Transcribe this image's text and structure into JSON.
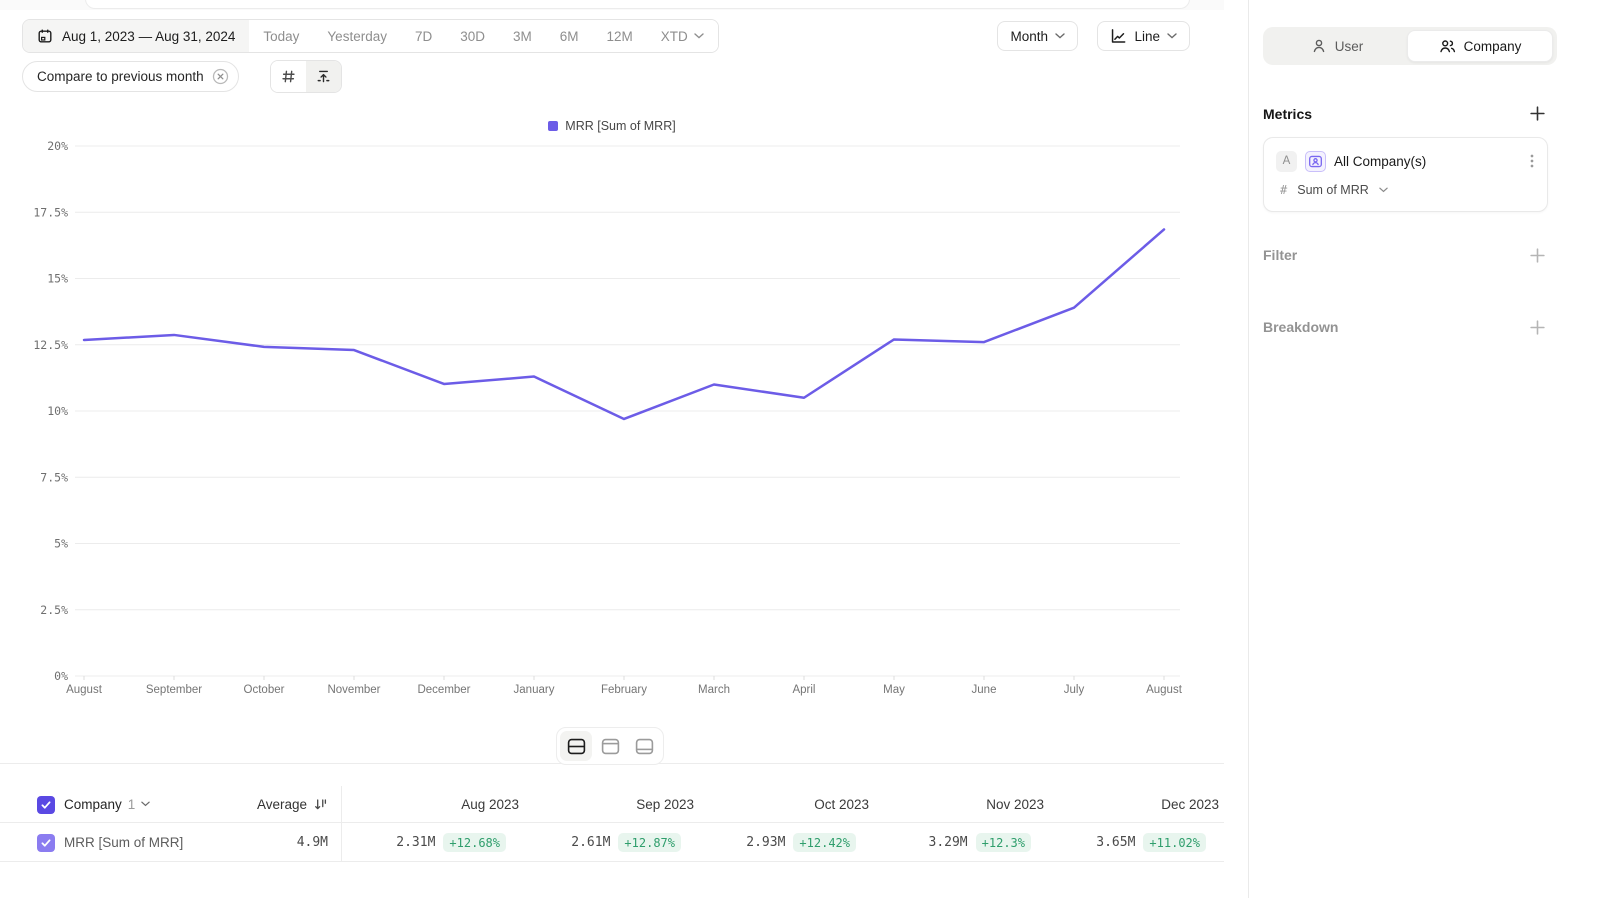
{
  "toolbar": {
    "date_range": "Aug 1, 2023 — Aug 31, 2024",
    "quick_ranges": [
      "Today",
      "Yesterday",
      "7D",
      "30D",
      "3M",
      "6M",
      "12M"
    ],
    "xtd_label": "XTD",
    "granularity": "Month",
    "chart_type": "Line",
    "compare_chip": "Compare to previous month"
  },
  "legend": {
    "label": "MRR [Sum of MRR]"
  },
  "chart_data": {
    "type": "line",
    "x": [
      "August",
      "September",
      "October",
      "November",
      "December",
      "January",
      "February",
      "March",
      "April",
      "May",
      "June",
      "July",
      "August"
    ],
    "series": [
      {
        "name": "MRR [Sum of MRR]",
        "values": [
          12.68,
          12.87,
          12.42,
          12.3,
          11.02,
          11.3,
          9.7,
          11.0,
          10.5,
          12.7,
          12.6,
          13.9,
          16.85
        ]
      }
    ],
    "ylabel": "",
    "ylim": [
      0,
      20
    ],
    "yticks": [
      "0%",
      "2.5%",
      "5%",
      "7.5%",
      "10%",
      "12.5%",
      "15%",
      "17.5%",
      "20%"
    ],
    "grid": true,
    "legend_position": "top",
    "line_color": "#6c5ce7"
  },
  "sidebar": {
    "toggle": {
      "user": "User",
      "company": "Company"
    },
    "metrics_title": "Metrics",
    "metric": {
      "badge": "A",
      "name": "All Company(s)",
      "hash": "#",
      "aggregation": "Sum of MRR"
    },
    "filter_title": "Filter",
    "breakdown_title": "Breakdown"
  },
  "table": {
    "entity": "Company",
    "entity_count": "1",
    "average_label": "Average",
    "columns": [
      "Aug 2023",
      "Sep 2023",
      "Oct 2023",
      "Nov 2023",
      "Dec 2023"
    ],
    "rows": [
      {
        "label": "MRR [Sum of MRR]",
        "average": "4.9M",
        "cells": [
          {
            "value": "2.31M",
            "delta": "+12.68%"
          },
          {
            "value": "2.61M",
            "delta": "+12.87%"
          },
          {
            "value": "2.93M",
            "delta": "+12.42%"
          },
          {
            "value": "3.29M",
            "delta": "+12.3%"
          },
          {
            "value": "3.65M",
            "delta": "+11.02%"
          }
        ]
      }
    ]
  },
  "colors": {
    "accent": "#6c5ce7",
    "header_checkbox": "#5a49e3",
    "row_checkbox": "#8b7cf0",
    "delta_text": "#2f9e6c",
    "delta_bg": "#e8f5ee"
  },
  "icons": {
    "calendar": "calendar glyph",
    "chevron_down": "⌄",
    "close_circle": "⊗",
    "grid": "#",
    "arrow_up_from_line": "↥",
    "line_chart": "polyline with axes",
    "user": "single person outline",
    "company": "two people outline",
    "plus": "+",
    "kebab_menu": "⋮",
    "sort": "↓ with bars",
    "check": "✓",
    "layout_split": "rect with middle bar",
    "layout_top": "rect with top bar",
    "layout_bottom": "rect with bottom bar"
  }
}
